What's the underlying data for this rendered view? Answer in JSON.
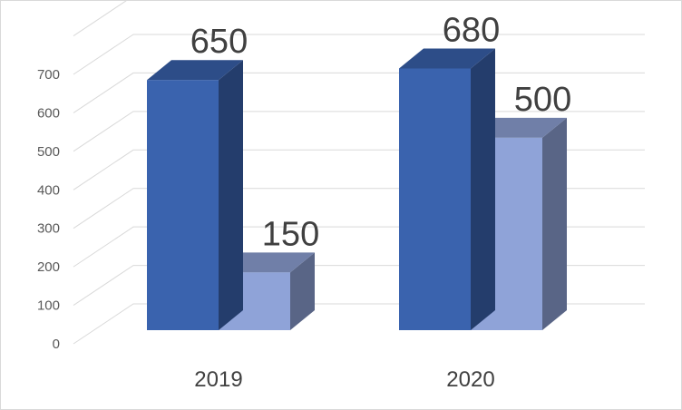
{
  "chart_data": {
    "type": "bar",
    "style": "3d-clustered-column",
    "categories": [
      "2019",
      "2020"
    ],
    "series": [
      {
        "values": [
          650,
          680
        ],
        "color": "#3a63ae"
      },
      {
        "values": [
          150,
          500
        ],
        "color": "#8fa3d8"
      }
    ],
    "y_ticks": [
      "0",
      "100",
      "200",
      "300",
      "400",
      "500",
      "600",
      "700"
    ],
    "ylim": [
      0,
      800
    ],
    "grid": true,
    "legend": "none",
    "data_labels": true
  }
}
